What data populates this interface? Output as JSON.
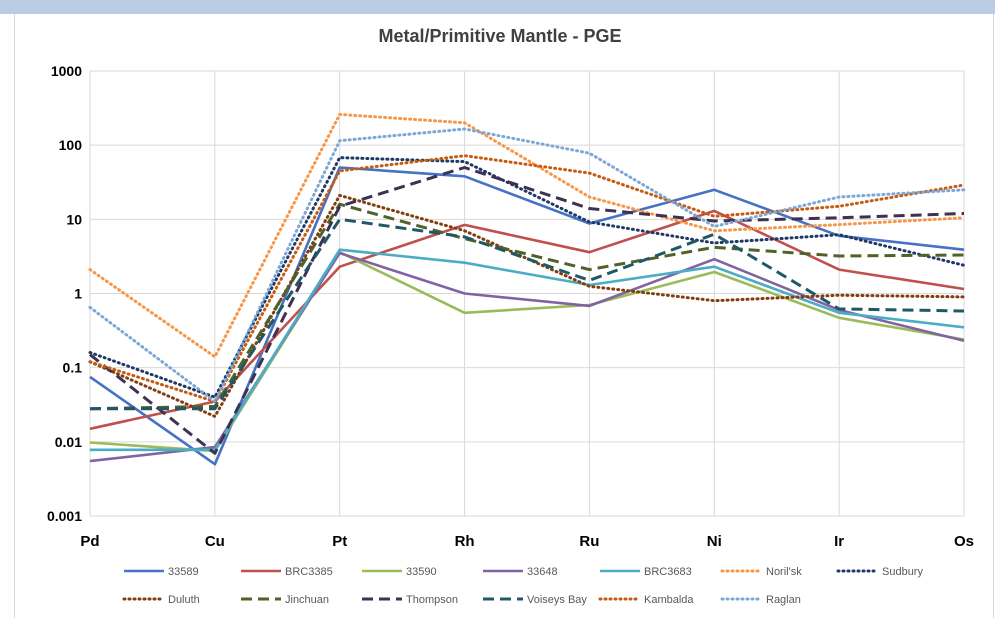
{
  "chart_data": {
    "type": "line",
    "title": "Metal/Primitive Mantle - PGE",
    "y_scale": "log",
    "ylim": [
      0.001,
      1000
    ],
    "yticks": [
      "0.001",
      "0.01",
      "0.1",
      "1",
      "10",
      "100",
      "1000"
    ],
    "categories": [
      "Pd",
      "Cu",
      "Pt",
      "Rh",
      "Ru",
      "Ni",
      "Ir",
      "Os"
    ],
    "legend_position": "bottom",
    "grid": true,
    "series": [
      {
        "name": "33589",
        "color": "#4472c4",
        "style": "solid",
        "values": [
          0.075,
          0.005,
          50,
          38,
          8.8,
          25,
          6.0,
          3.9
        ]
      },
      {
        "name": "BRC3385",
        "color": "#c0504d",
        "style": "solid",
        "values": [
          0.015,
          0.035,
          2.3,
          8.4,
          3.6,
          13,
          2.1,
          1.15
        ]
      },
      {
        "name": "33590",
        "color": "#9bbb59",
        "style": "solid",
        "values": [
          0.0098,
          0.0075,
          3.6,
          0.55,
          0.7,
          1.95,
          0.47,
          0.24
        ]
      },
      {
        "name": "33648",
        "color": "#8064a2",
        "style": "solid",
        "values": [
          0.0055,
          0.0085,
          3.5,
          1.0,
          0.68,
          2.9,
          0.6,
          0.23
        ]
      },
      {
        "name": "BRC3683",
        "color": "#4bacc6",
        "style": "solid",
        "values": [
          0.0078,
          0.0078,
          3.9,
          2.6,
          1.3,
          2.3,
          0.55,
          0.35
        ]
      },
      {
        "name": "Noril'sk",
        "color": "#f79646",
        "style": "dotted",
        "values": [
          2.1,
          0.14,
          260,
          200,
          20,
          7.0,
          8.5,
          10.5
        ]
      },
      {
        "name": "Sudbury",
        "color": "#1f3864",
        "style": "dotted",
        "values": [
          0.16,
          0.04,
          68,
          60,
          9.2,
          4.8,
          6.2,
          2.4
        ]
      },
      {
        "name": "Duluth",
        "color": "#833c0b",
        "style": "dotted",
        "values": [
          0.12,
          0.022,
          21,
          7.0,
          1.25,
          0.8,
          0.95,
          0.9
        ]
      },
      {
        "name": "Jinchuan",
        "color": "#4f6228",
        "style": "dashed",
        "values": [
          0.028,
          0.03,
          16,
          5.5,
          2.1,
          4.2,
          3.2,
          3.3
        ]
      },
      {
        "name": "Thompson",
        "color": "#3f3151",
        "style": "dashed",
        "values": [
          0.15,
          0.007,
          15,
          50,
          14,
          9.5,
          10.5,
          12
        ]
      },
      {
        "name": "Voiseys Bay",
        "color": "#215868",
        "style": "dashed",
        "values": [
          0.028,
          0.028,
          10,
          5.8,
          1.5,
          6.3,
          0.62,
          0.58
        ]
      },
      {
        "name": "Kambalda",
        "color": "#c55a11",
        "style": "dotted",
        "values": [
          0.12,
          0.035,
          45,
          72,
          42,
          11,
          15,
          29
        ]
      },
      {
        "name": "Raglan",
        "color": "#7ba7d7",
        "style": "dotted",
        "values": [
          0.65,
          0.035,
          115,
          165,
          78,
          8.0,
          20,
          25
        ]
      }
    ]
  }
}
